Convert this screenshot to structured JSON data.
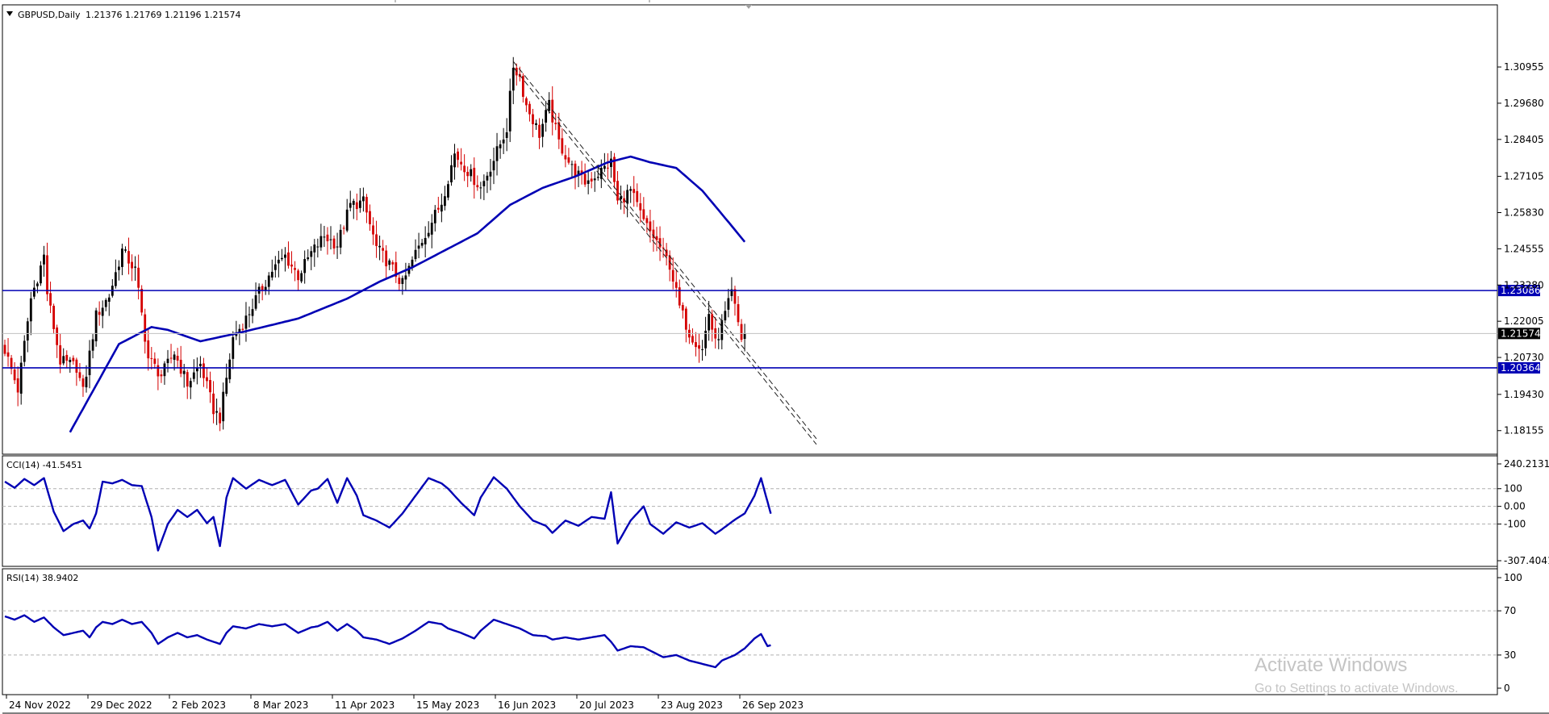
{
  "header": {
    "symbol": "GBPUSD,Daily",
    "ohlc": "1.21376 1.21769 1.21196 1.21574"
  },
  "colors": {
    "bull": "#000000",
    "bear": "#d40000",
    "indicator": "#0000b4",
    "level_tag": "#0000b4",
    "price_tag": "#000000"
  },
  "chart_data": [
    {
      "type": "candlestick",
      "title": "GBPUSD,Daily",
      "ylim": [
        1.1775,
        1.3195
      ],
      "y_ticks": [
        "1.30955",
        "1.29680",
        "1.28405",
        "1.27105",
        "1.25830",
        "1.24555",
        "1.23280",
        "1.22005",
        "1.20730",
        "1.19430",
        "1.18155"
      ],
      "x_tick_labels": [
        "24 Nov 2022",
        "29 Dec 2022",
        "2 Feb 2023",
        "8 Mar 2023",
        "11 Apr 2023",
        "15 May 2023",
        "16 Jun 2023",
        "20 Jul 2023",
        "23 Aug 2023",
        "26 Sep 2023"
      ],
      "anchors": [
        [
          0,
          1.21
        ],
        [
          4,
          1.196
        ],
        [
          8,
          1.228
        ],
        [
          12,
          1.243
        ],
        [
          13,
          1.23
        ],
        [
          17,
          1.206
        ],
        [
          22,
          1.204
        ],
        [
          24,
          1.195
        ],
        [
          28,
          1.222
        ],
        [
          32,
          1.229
        ],
        [
          36,
          1.245
        ],
        [
          40,
          1.238
        ],
        [
          44,
          1.207
        ],
        [
          48,
          1.201
        ],
        [
          52,
          1.209
        ],
        [
          56,
          1.198
        ],
        [
          60,
          1.205
        ],
        [
          64,
          1.189
        ],
        [
          66,
          1.186
        ],
        [
          70,
          1.214
        ],
        [
          74,
          1.221
        ],
        [
          78,
          1.23
        ],
        [
          82,
          1.238
        ],
        [
          86,
          1.243
        ],
        [
          90,
          1.236
        ],
        [
          94,
          1.244
        ],
        [
          98,
          1.25
        ],
        [
          102,
          1.247
        ],
        [
          106,
          1.261
        ],
        [
          110,
          1.262
        ],
        [
          114,
          1.246
        ],
        [
          118,
          1.24
        ],
        [
          122,
          1.233
        ],
        [
          126,
          1.244
        ],
        [
          130,
          1.253
        ],
        [
          134,
          1.262
        ],
        [
          138,
          1.279
        ],
        [
          142,
          1.273
        ],
        [
          146,
          1.267
        ],
        [
          150,
          1.277
        ],
        [
          154,
          1.288
        ],
        [
          156,
          1.31
        ],
        [
          158,
          1.306
        ],
        [
          160,
          1.296
        ],
        [
          164,
          1.286
        ],
        [
          167,
          1.296
        ],
        [
          170,
          1.283
        ],
        [
          174,
          1.274
        ],
        [
          178,
          1.269
        ],
        [
          182,
          1.272
        ],
        [
          186,
          1.276
        ],
        [
          188,
          1.262
        ],
        [
          192,
          1.266
        ],
        [
          196,
          1.255
        ],
        [
          200,
          1.248
        ],
        [
          204,
          1.24
        ],
        [
          207,
          1.225
        ],
        [
          210,
          1.216
        ],
        [
          214,
          1.21
        ],
        [
          216,
          1.223
        ],
        [
          218,
          1.212
        ],
        [
          222,
          1.226
        ],
        [
          223,
          1.23
        ],
        [
          226,
          1.214
        ],
        [
          227,
          1.2157
        ]
      ],
      "moving_average_anchors": [
        [
          20,
          1.181
        ],
        [
          35,
          1.212
        ],
        [
          45,
          1.218
        ],
        [
          50,
          1.217
        ],
        [
          55,
          1.215
        ],
        [
          60,
          1.213
        ],
        [
          72,
          1.216
        ],
        [
          90,
          1.221
        ],
        [
          105,
          1.228
        ],
        [
          115,
          1.234
        ],
        [
          125,
          1.239
        ],
        [
          135,
          1.245
        ],
        [
          145,
          1.251
        ],
        [
          155,
          1.261
        ],
        [
          165,
          1.267
        ],
        [
          175,
          1.271
        ],
        [
          185,
          1.276
        ],
        [
          192,
          1.278
        ],
        [
          198,
          1.276
        ],
        [
          206,
          1.274
        ],
        [
          214,
          1.266
        ],
        [
          222,
          1.255
        ],
        [
          227,
          1.248
        ]
      ],
      "horizontal_lines": [
        {
          "value": 1.23086,
          "label": "1.23086"
        },
        {
          "value": 1.20364,
          "label": "1.20364"
        }
      ],
      "trendlines": [
        {
          "from": [
            156,
            1.3115
          ],
          "to": [
            249,
            1.1787
          ]
        },
        {
          "from": [
            156,
            1.3095
          ],
          "to": [
            249,
            1.1767
          ]
        }
      ],
      "current_price": {
        "value": 1.21574,
        "label": "1.21574"
      }
    },
    {
      "type": "line",
      "title": "CCI(14) -41.5451",
      "ylim": [
        -307.4041,
        240.2131
      ],
      "y_ticks": [
        "240.2131",
        "100",
        "0.00",
        "-100",
        "-307.4041"
      ],
      "anchors": [
        [
          0,
          140
        ],
        [
          3,
          105
        ],
        [
          6,
          155
        ],
        [
          9,
          120
        ],
        [
          12,
          160
        ],
        [
          15,
          -30
        ],
        [
          18,
          -140
        ],
        [
          21,
          -100
        ],
        [
          24,
          -80
        ],
        [
          26,
          -125
        ],
        [
          28,
          -40
        ],
        [
          30,
          140
        ],
        [
          33,
          130
        ],
        [
          36,
          150
        ],
        [
          39,
          120
        ],
        [
          42,
          115
        ],
        [
          45,
          -60
        ],
        [
          47,
          -250
        ],
        [
          50,
          -100
        ],
        [
          53,
          -20
        ],
        [
          56,
          -60
        ],
        [
          59,
          -20
        ],
        [
          62,
          -95
        ],
        [
          64,
          -60
        ],
        [
          66,
          -225
        ],
        [
          68,
          50
        ],
        [
          70,
          160
        ],
        [
          74,
          100
        ],
        [
          78,
          150
        ],
        [
          82,
          120
        ],
        [
          86,
          150
        ],
        [
          90,
          10
        ],
        [
          94,
          90
        ],
        [
          96,
          100
        ],
        [
          99,
          155
        ],
        [
          102,
          20
        ],
        [
          105,
          160
        ],
        [
          108,
          60
        ],
        [
          110,
          -50
        ],
        [
          114,
          -80
        ],
        [
          118,
          -120
        ],
        [
          122,
          -40
        ],
        [
          126,
          60
        ],
        [
          130,
          160
        ],
        [
          134,
          130
        ],
        [
          136,
          100
        ],
        [
          140,
          20
        ],
        [
          144,
          -50
        ],
        [
          146,
          50
        ],
        [
          150,
          165
        ],
        [
          154,
          100
        ],
        [
          158,
          0
        ],
        [
          162,
          -80
        ],
        [
          166,
          -110
        ],
        [
          168,
          -150
        ],
        [
          172,
          -80
        ],
        [
          176,
          -110
        ],
        [
          180,
          -60
        ],
        [
          184,
          -70
        ],
        [
          186,
          80
        ],
        [
          188,
          -210
        ],
        [
          192,
          -80
        ],
        [
          196,
          0
        ],
        [
          198,
          -100
        ],
        [
          202,
          -155
        ],
        [
          206,
          -90
        ],
        [
          210,
          -120
        ],
        [
          214,
          -95
        ],
        [
          218,
          -155
        ],
        [
          220,
          -130
        ],
        [
          224,
          -75
        ],
        [
          227,
          -40
        ],
        [
          230,
          60
        ],
        [
          232,
          160
        ],
        [
          235,
          -41.5
        ]
      ]
    },
    {
      "type": "line",
      "title": "RSI(14) 38.9402",
      "ylim": [
        0,
        100
      ],
      "y_ticks": [
        "100",
        "70",
        "30",
        "0"
      ],
      "anchors": [
        [
          0,
          65
        ],
        [
          3,
          62
        ],
        [
          6,
          66
        ],
        [
          9,
          60
        ],
        [
          12,
          64
        ],
        [
          15,
          55
        ],
        [
          18,
          48
        ],
        [
          21,
          50
        ],
        [
          24,
          52
        ],
        [
          26,
          46
        ],
        [
          28,
          55
        ],
        [
          30,
          60
        ],
        [
          33,
          58
        ],
        [
          36,
          62
        ],
        [
          39,
          58
        ],
        [
          42,
          60
        ],
        [
          45,
          50
        ],
        [
          47,
          40
        ],
        [
          50,
          46
        ],
        [
          53,
          50
        ],
        [
          56,
          46
        ],
        [
          59,
          48
        ],
        [
          62,
          44
        ],
        [
          64,
          42
        ],
        [
          66,
          40
        ],
        [
          68,
          50
        ],
        [
          70,
          56
        ],
        [
          74,
          54
        ],
        [
          78,
          58
        ],
        [
          82,
          56
        ],
        [
          86,
          58
        ],
        [
          90,
          50
        ],
        [
          94,
          55
        ],
        [
          96,
          56
        ],
        [
          99,
          60
        ],
        [
          102,
          52
        ],
        [
          105,
          58
        ],
        [
          108,
          52
        ],
        [
          110,
          46
        ],
        [
          114,
          44
        ],
        [
          118,
          40
        ],
        [
          122,
          45
        ],
        [
          126,
          52
        ],
        [
          130,
          60
        ],
        [
          134,
          58
        ],
        [
          136,
          54
        ],
        [
          140,
          50
        ],
        [
          144,
          45
        ],
        [
          146,
          52
        ],
        [
          150,
          62
        ],
        [
          154,
          58
        ],
        [
          158,
          54
        ],
        [
          162,
          48
        ],
        [
          166,
          47
        ],
        [
          168,
          44
        ],
        [
          172,
          46
        ],
        [
          176,
          44
        ],
        [
          180,
          46
        ],
        [
          184,
          48
        ],
        [
          186,
          42
        ],
        [
          188,
          34
        ],
        [
          192,
          38
        ],
        [
          196,
          37
        ],
        [
          198,
          34
        ],
        [
          202,
          28
        ],
        [
          206,
          30
        ],
        [
          210,
          25
        ],
        [
          214,
          22
        ],
        [
          218,
          19
        ],
        [
          220,
          25
        ],
        [
          224,
          30
        ],
        [
          227,
          36
        ],
        [
          230,
          45
        ],
        [
          232,
          49
        ],
        [
          234,
          38
        ],
        [
          235,
          38.9
        ]
      ]
    }
  ],
  "watermark": {
    "line1": "Activate Windows",
    "line2": "Go to Settings to activate Windows."
  }
}
